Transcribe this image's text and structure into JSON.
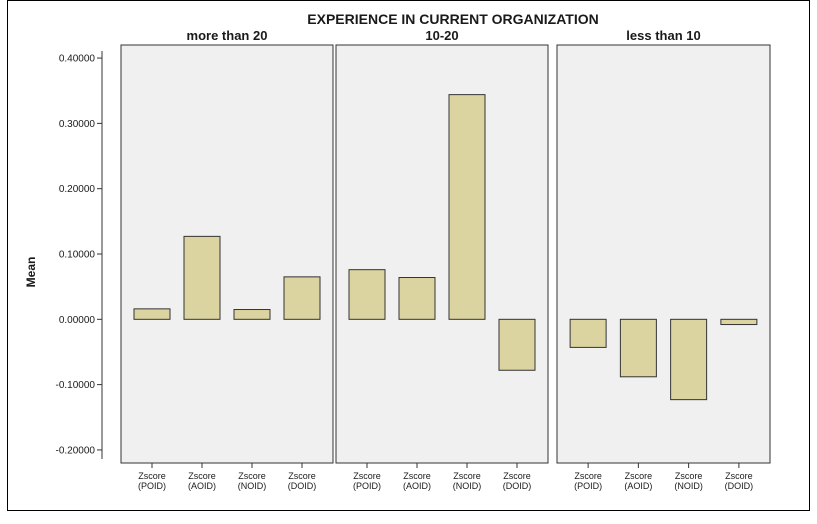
{
  "chart_data": {
    "type": "bar",
    "title": "EXPERIENCE IN CURRENT ORGANIZATION",
    "ylabel": "Mean",
    "xlabel": "",
    "ylim": [
      -0.22,
      0.42
    ],
    "yticks": [
      -0.2,
      -0.1,
      0.0,
      0.1,
      0.2,
      0.3,
      0.4
    ],
    "ytick_labels": [
      "-0.20000",
      "-0.10000",
      "0.00000",
      "0.10000",
      "0.20000",
      "0.30000",
      "0.40000"
    ],
    "categories": [
      {
        "line1": "Zscore",
        "line2": "(POID)"
      },
      {
        "line1": "Zscore",
        "line2": "(AOID)"
      },
      {
        "line1": "Zscore",
        "line2": "(NOID)"
      },
      {
        "line1": "Zscore",
        "line2": "(DOID)"
      }
    ],
    "panels": [
      {
        "name": "more than 20",
        "values": [
          0.016,
          0.127,
          0.015,
          0.065
        ]
      },
      {
        "name": "10-20",
        "values": [
          0.076,
          0.064,
          0.344,
          -0.078
        ]
      },
      {
        "name": "less than 10",
        "values": [
          -0.043,
          -0.088,
          -0.123,
          -0.008
        ]
      }
    ],
    "bar_color": "#dcd4a0",
    "bar_stroke": "#333333",
    "panel_bg": "#f0f0f0",
    "grid": false,
    "legend": "none"
  }
}
